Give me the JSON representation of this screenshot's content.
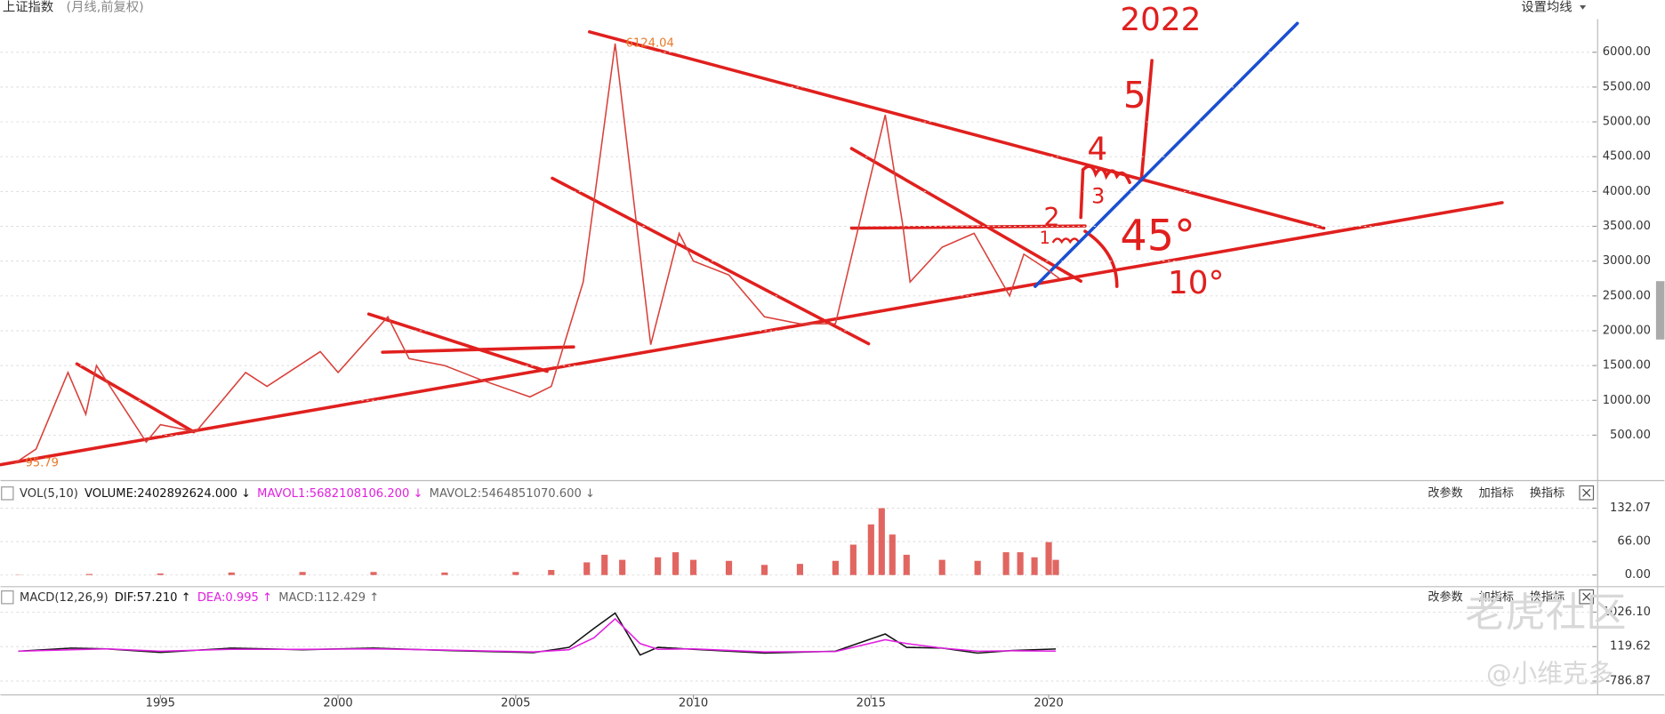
{
  "chart_data": [
    {
      "type": "line",
      "title": "上证指数",
      "subtitle": "(月线,前复权)",
      "setting_button": "设置均线",
      "x": [
        1990.9,
        1991.5,
        1992.4,
        1992.9,
        1993.2,
        1994.6,
        1995.0,
        1996.0,
        1997.4,
        1998.0,
        1999.5,
        2000.0,
        2001.4,
        2002.0,
        2003.0,
        2004.0,
        2005.4,
        2006.0,
        2006.9,
        2007.8,
        2008.8,
        2009.6,
        2010.0,
        2011.0,
        2012.0,
        2013.0,
        2014.0,
        2015.4,
        2015.9,
        2016.1,
        2017.0,
        2017.9,
        2018.9,
        2019.3,
        2019.9,
        2020.3
      ],
      "series": [
        {
          "color": "#d9403a",
          "values": [
            95.79,
            300,
            1400,
            800,
            1500,
            400,
            650,
            550,
            1400,
            1200,
            1700,
            1400,
            2200,
            1600,
            1500,
            1300,
            1050,
            1200,
            2700,
            6124.04,
            1800,
            3400,
            3000,
            2800,
            2200,
            2100,
            2100,
            5100,
            3500,
            2700,
            3200,
            3400,
            2500,
            3100,
            2900,
            2750
          ]
        }
      ],
      "xlim": [
        1990.5,
        2035.3
      ],
      "xticks": [
        1995,
        2000,
        2005,
        2010,
        2015,
        2020
      ],
      "ylim": [
        0,
        6476
      ],
      "yticks": [
        {
          "value": 500,
          "label": "500.00"
        },
        {
          "value": 1000,
          "label": "1000.00"
        },
        {
          "value": 1500,
          "label": "1500.00"
        },
        {
          "value": 2000,
          "label": "2000.00"
        },
        {
          "value": 2500,
          "label": "2500.00"
        },
        {
          "value": 3000,
          "label": "3000.00"
        },
        {
          "value": 3500,
          "label": "3500.00"
        },
        {
          "value": 4000,
          "label": "4000.00"
        },
        {
          "value": 4500,
          "label": "4500.00"
        },
        {
          "value": 5000,
          "label": "5000.00"
        },
        {
          "value": 5500,
          "label": "5500.00"
        },
        {
          "value": 6000,
          "label": "6000.00"
        }
      ],
      "grid": true,
      "annotations": [
        {
          "text": "6124.04",
          "x": 2007.8,
          "y": 6124.04,
          "color": "#e87a2a"
        },
        {
          "text": "95.79",
          "x": 1990.9,
          "y": 95.79,
          "color": "#e87a2a"
        }
      ],
      "handwriting": [
        "2022",
        "5",
        "4",
        "3",
        "2",
        "1",
        "45°",
        "10°"
      ]
    },
    {
      "type": "bar",
      "legend": [
        {
          "text": "VOL(5,10)",
          "color": "#333"
        },
        {
          "text": "VOLUME:2402892624.000 ↓",
          "color": "#111"
        },
        {
          "text": "MAVOL1:5682108106.200 ↓",
          "color": "#e020e0"
        },
        {
          "text": "MAVOL2:5464851070.600 ↓",
          "color": "#666"
        }
      ],
      "buttons": [
        "改参数",
        "加指标",
        "换指标"
      ],
      "x": [
        1991,
        1993,
        1995,
        1997,
        1999,
        2001,
        2003,
        2005,
        2006,
        2007,
        2007.5,
        2008,
        2009,
        2009.5,
        2010,
        2011,
        2012,
        2013,
        2014,
        2014.5,
        2015,
        2015.3,
        2015.6,
        2016,
        2017,
        2018,
        2018.8,
        2019.2,
        2019.6,
        2020,
        2020.2
      ],
      "series": [
        {
          "color": "#d9403a",
          "values": [
            0.5,
            2,
            3,
            5,
            6,
            6,
            5,
            6,
            10,
            25,
            40,
            30,
            35,
            45,
            30,
            28,
            20,
            22,
            28,
            60,
            100,
            132,
            80,
            40,
            30,
            28,
            45,
            45,
            35,
            65,
            30
          ]
        }
      ],
      "ylim": [
        0,
        150.9
      ],
      "yticks": [
        132.07,
        {
          "value": 66,
          "label": "66.00"
        },
        {
          "value": 0,
          "label": "0.00"
        }
      ],
      "grid": true
    },
    {
      "type": "line",
      "legend": [
        {
          "text": "MACD(12,26,9)",
          "color": "#333"
        },
        {
          "text": "DIF:57.210 ↑",
          "color": "#111"
        },
        {
          "text": "DEA:0.995 ↑",
          "color": "#e020e0"
        },
        {
          "text": "MACD:112.429 ↑",
          "color": "#666"
        }
      ],
      "buttons": [
        "改参数",
        "加指标",
        "换指标"
      ],
      "x": [
        1991,
        1992.5,
        1993.5,
        1995,
        1997,
        1999,
        2001,
        2003,
        2005.5,
        2006.5,
        2007.2,
        2007.8,
        2008.5,
        2009,
        2010,
        2012,
        2014,
        2015.4,
        2016,
        2017,
        2018,
        2019,
        2020.2
      ],
      "series": [
        {
          "color": "#111",
          "values": [
            0,
            80,
            60,
            -30,
            80,
            40,
            80,
            20,
            -40,
            100,
            600,
            1000,
            -100,
            100,
            50,
            -50,
            0,
            450,
            100,
            80,
            -50,
            20,
            57.21
          ]
        },
        {
          "color": "#e020e0",
          "values": [
            0,
            40,
            60,
            0,
            50,
            50,
            60,
            30,
            -20,
            40,
            350,
            850,
            200,
            50,
            60,
            -20,
            -10,
            300,
            200,
            80,
            0,
            10,
            0.995
          ]
        }
      ],
      "ylim": [
        -1010,
        1500
      ],
      "yticks": [
        {
          "value": 1026.1,
          "label": "1026.10"
        },
        119.62,
        -786.87
      ],
      "grid": true
    }
  ],
  "watermark": [
    "老虎社区",
    "@小维克多"
  ]
}
